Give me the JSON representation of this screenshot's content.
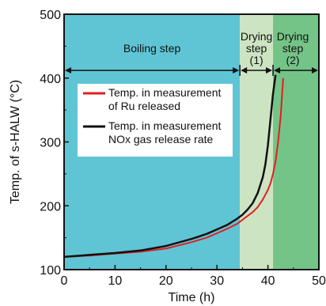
{
  "chart_data": {
    "type": "line",
    "xlabel": "Time (h)",
    "ylabel": "Temp. of s-HALW (°C)",
    "xlim": [
      0,
      50
    ],
    "ylim": [
      100,
      500
    ],
    "x_ticks": [
      "0",
      "10",
      "20",
      "30",
      "40",
      "50"
    ],
    "y_ticks": [
      "100",
      "200",
      "300",
      "400",
      "500"
    ],
    "grid": false,
    "legend_position": "upper-left",
    "regions": [
      {
        "label": "Boiling step",
        "x_start": 0,
        "x_end": 34.5,
        "color": "#5fc5d5"
      },
      {
        "label": "Drying step (1)",
        "label_lines": [
          "Drying",
          "step",
          "(1)"
        ],
        "x_start": 34.5,
        "x_end": 41,
        "color": "#cde4c3"
      },
      {
        "label": "Drying step (2)",
        "label_lines": [
          "Drying",
          "step",
          "(2)"
        ],
        "x_start": 41,
        "x_end": 50,
        "color": "#74c487"
      }
    ],
    "series": [
      {
        "name": "Temp. in measurement of Ru released",
        "legend_lines": [
          "Temp. in measurement",
          "of Ru released"
        ],
        "color": "#e02020",
        "x": [
          0,
          5,
          10,
          15,
          20,
          25,
          28,
          30,
          32,
          34,
          35,
          36,
          37,
          38,
          39,
          40,
          40.5,
          41,
          41.5,
          42,
          42.5,
          43
        ],
        "y": [
          120,
          122,
          125,
          128,
          133,
          143,
          150,
          157,
          164,
          172,
          178,
          184,
          190,
          198,
          210,
          225,
          235,
          250,
          270,
          300,
          340,
          400
        ]
      },
      {
        "name": "Temp. in measurement NOx gas release rate",
        "legend_lines": [
          "Temp. in measurement",
          "NOx gas release rate"
        ],
        "color": "#111111",
        "x": [
          0,
          5,
          10,
          15,
          20,
          25,
          28,
          30,
          32,
          34,
          35,
          36,
          37,
          38,
          39,
          39.5,
          40,
          40.5,
          41,
          41.5
        ],
        "y": [
          120,
          123,
          126,
          130,
          137,
          148,
          156,
          163,
          170,
          180,
          186,
          194,
          204,
          220,
          245,
          265,
          295,
          335,
          375,
          405
        ]
      }
    ]
  }
}
